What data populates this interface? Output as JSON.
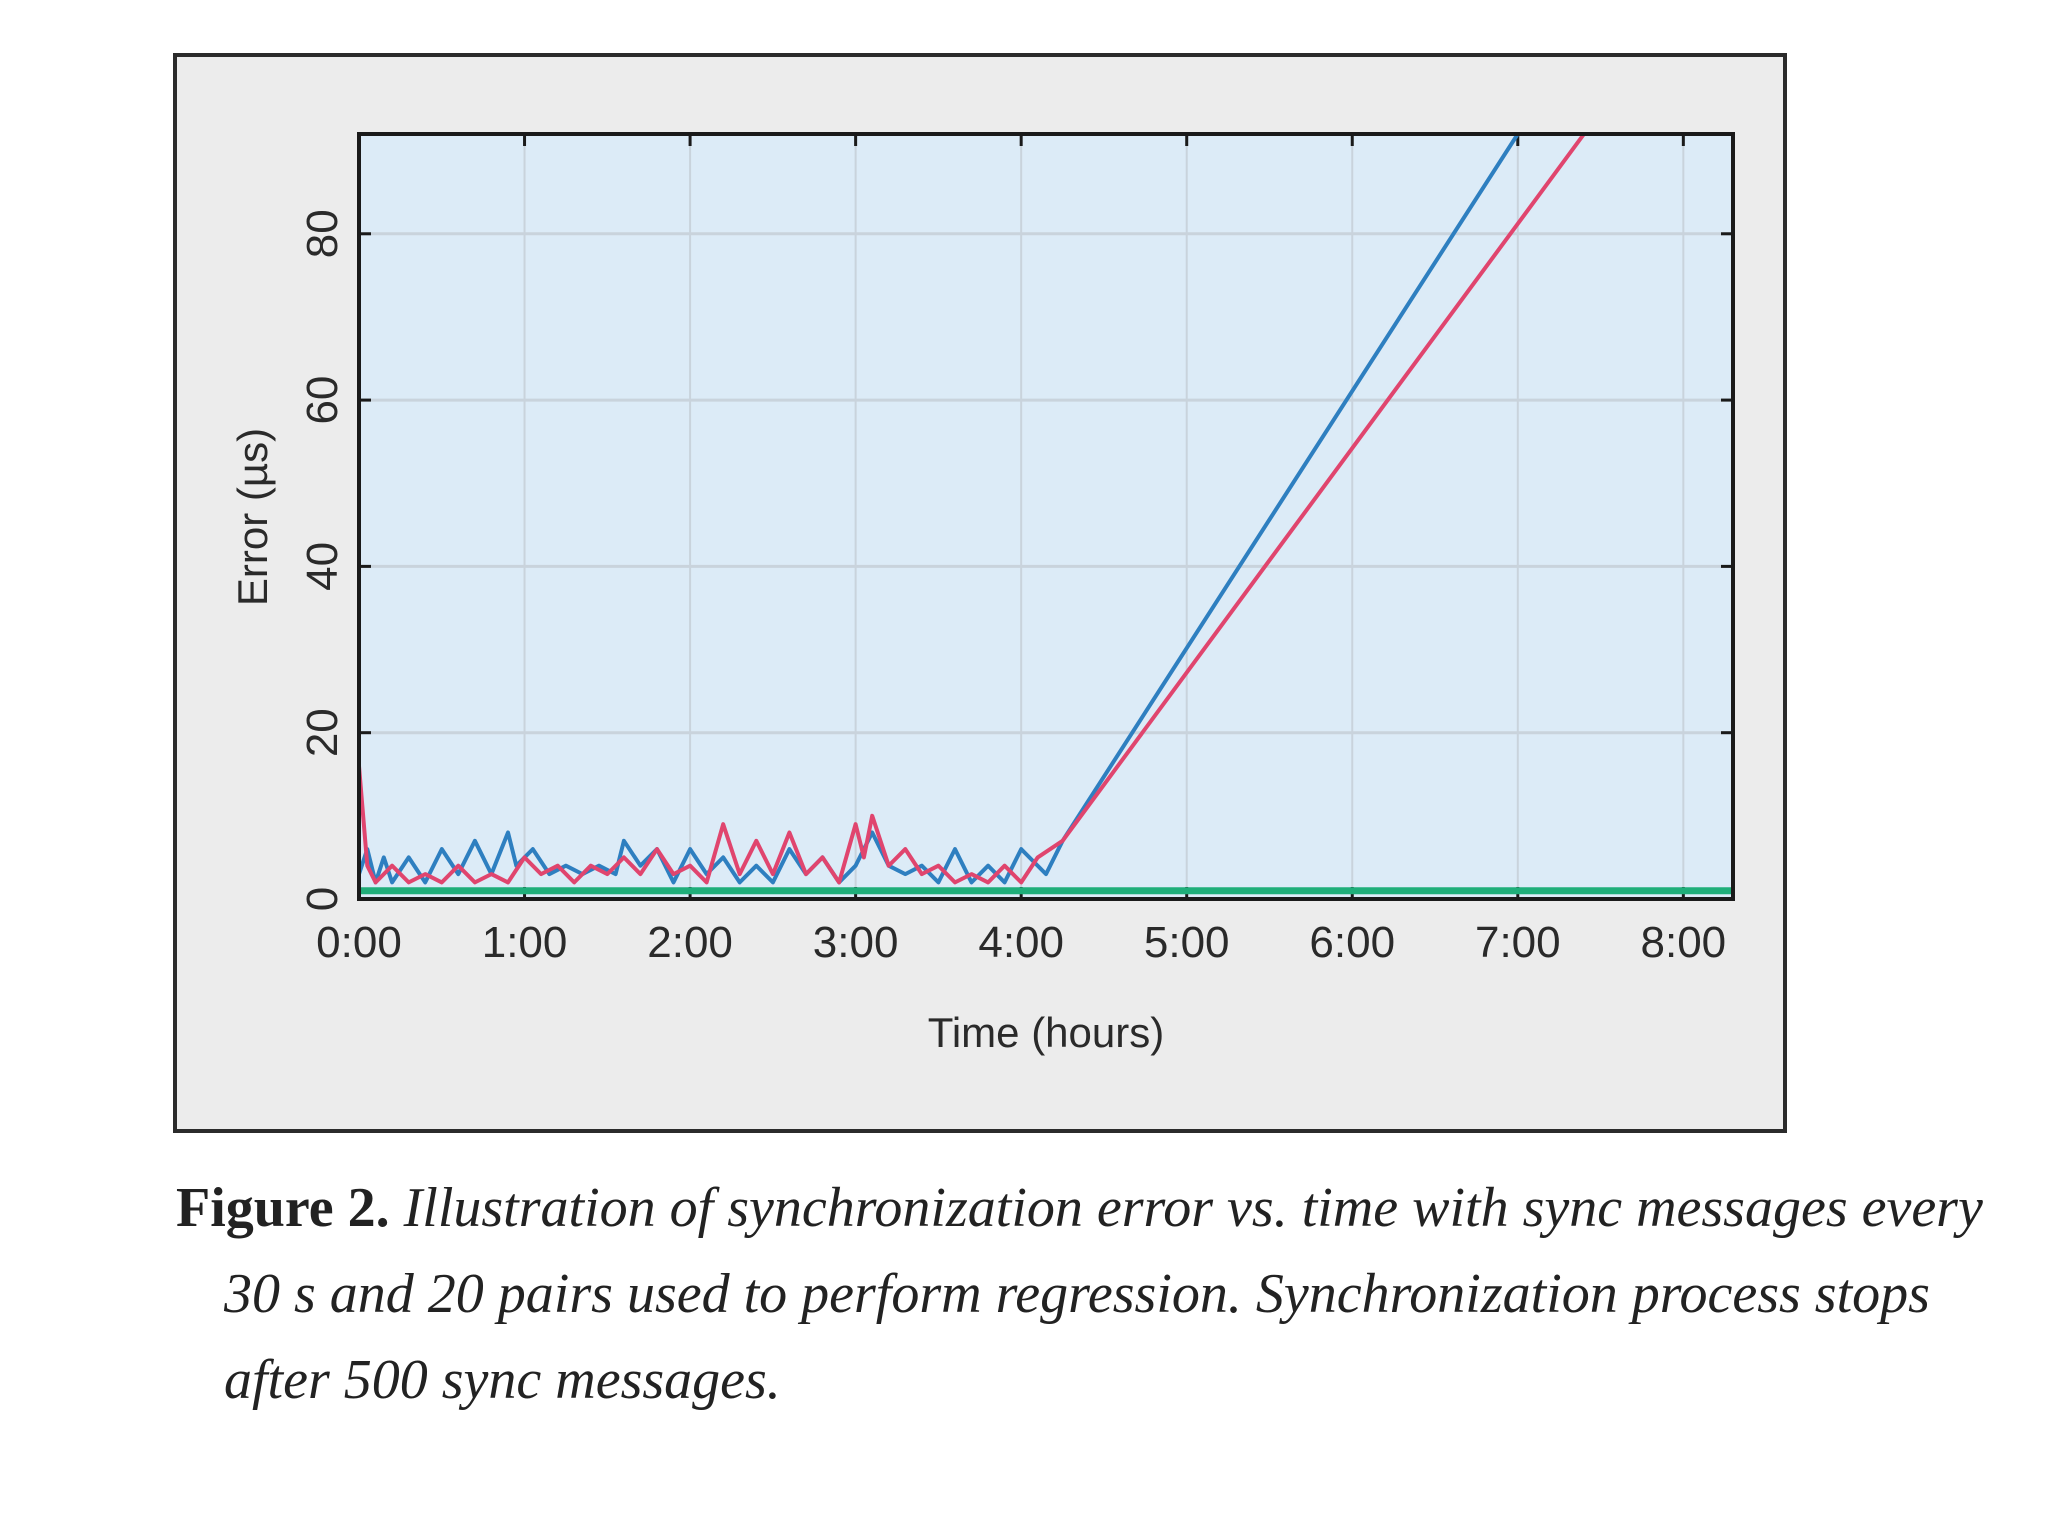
{
  "chart_data": {
    "type": "line",
    "xlabel": "Time (hours)",
    "ylabel": "Error (µs)",
    "xlim": [
      0,
      8.3
    ],
    "ylim": [
      0,
      92
    ],
    "x_ticks": [
      {
        "value": 0,
        "label": "0:00"
      },
      {
        "value": 1,
        "label": "1:00"
      },
      {
        "value": 2,
        "label": "2:00"
      },
      {
        "value": 3,
        "label": "3:00"
      },
      {
        "value": 4,
        "label": "4:00"
      },
      {
        "value": 5,
        "label": "5:00"
      },
      {
        "value": 6,
        "label": "6:00"
      },
      {
        "value": 7,
        "label": "7:00"
      },
      {
        "value": 8,
        "label": "8:00"
      }
    ],
    "y_ticks": [
      {
        "value": 0,
        "label": "0"
      },
      {
        "value": 20,
        "label": "20"
      },
      {
        "value": 40,
        "label": "40"
      },
      {
        "value": 60,
        "label": "60"
      },
      {
        "value": 80,
        "label": "80"
      }
    ],
    "grid": true,
    "series": [
      {
        "color": "#2e7fc0",
        "x": [
          0,
          0.05,
          0.1,
          0.15,
          0.2,
          0.3,
          0.4,
          0.5,
          0.6,
          0.7,
          0.8,
          0.9,
          0.95,
          1.05,
          1.15,
          1.25,
          1.35,
          1.45,
          1.55,
          1.6,
          1.7,
          1.8,
          1.9,
          2.0,
          2.1,
          2.2,
          2.3,
          2.4,
          2.5,
          2.6,
          2.7,
          2.8,
          2.9,
          3.0,
          3.1,
          3.2,
          3.3,
          3.4,
          3.5,
          3.6,
          3.7,
          3.8,
          3.9,
          4.0,
          4.15,
          4.25,
          7.0,
          7.05
        ],
        "y": [
          3,
          6,
          2,
          5,
          2,
          5,
          2,
          6,
          3,
          7,
          3,
          8,
          4,
          6,
          3,
          4,
          3,
          4,
          3,
          7,
          4,
          6,
          2,
          6,
          3,
          5,
          2,
          4,
          2,
          6,
          3,
          5,
          2,
          4,
          8,
          4,
          3,
          4,
          2,
          6,
          2,
          4,
          2,
          6,
          3,
          7,
          92,
          93
        ]
      },
      {
        "color": "#e0456e",
        "x": [
          0,
          0.05,
          0.1,
          0.2,
          0.3,
          0.4,
          0.5,
          0.6,
          0.7,
          0.8,
          0.9,
          1.0,
          1.1,
          1.2,
          1.3,
          1.4,
          1.5,
          1.6,
          1.7,
          1.8,
          1.9,
          2.0,
          2.1,
          2.2,
          2.3,
          2.4,
          2.5,
          2.6,
          2.7,
          2.8,
          2.9,
          3.0,
          3.05,
          3.1,
          3.2,
          3.3,
          3.4,
          3.5,
          3.6,
          3.7,
          3.8,
          3.9,
          4.0,
          4.1,
          4.25,
          7.4,
          7.45
        ],
        "y": [
          16,
          4,
          2,
          4,
          2,
          3,
          2,
          4,
          2,
          3,
          2,
          5,
          3,
          4,
          2,
          4,
          3,
          5,
          3,
          6,
          3,
          4,
          2,
          9,
          3,
          7,
          3,
          8,
          3,
          5,
          2,
          9,
          5,
          10,
          4,
          6,
          3,
          4,
          2,
          3,
          2,
          4,
          2,
          5,
          7,
          92,
          93
        ]
      },
      {
        "color": "#1fae7a",
        "x": [
          0,
          8.3
        ],
        "y": [
          1,
          1
        ]
      }
    ]
  },
  "caption": {
    "label": "Figure 2.",
    "line1": "Illustration of synchronization error vs. time with sync messages every",
    "line2": "30 s and 20 pairs used to perform regression. Synchronization process stops",
    "line3": "after 500 sync messages."
  }
}
